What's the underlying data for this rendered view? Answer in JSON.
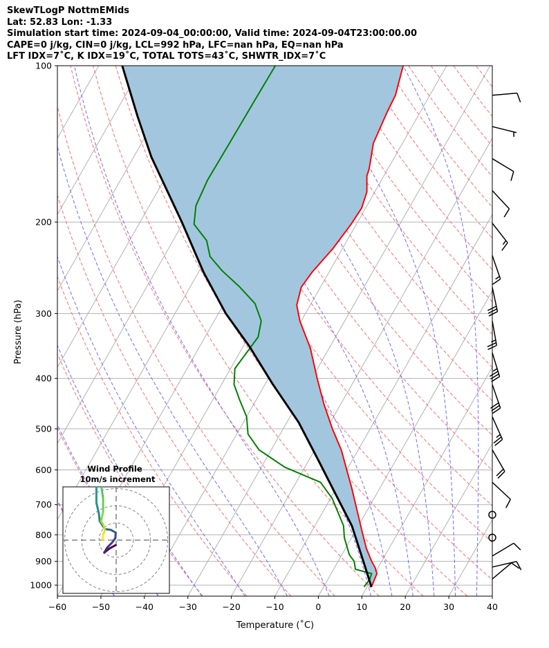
{
  "title_lines": [
    "SkewTLogP NottmEMids",
    "Lat: 52.83   Lon: -1.33",
    "Simulation start time: 2024-09-04_00:00:00, Valid time: 2024-09-04T23:00:00.00",
    "CAPE=0 j/kg, CIN=0 j/kg, LCL=992 hPa, LFC=nan hPa, EQ=nan hPa",
    "LFT IDX=7˚C, K IDX=19˚C, TOTAL TOTS=43˚C, SHWTR_IDX=7˚C"
  ],
  "chart_data": {
    "type": "line",
    "subtype": "skewT-logP",
    "xlabel": "Temperature (˚C)",
    "ylabel": "Pressure (hPa)",
    "xlim": [
      -60,
      40
    ],
    "ylim": [
      1050,
      100
    ],
    "x_ticks": [
      -60,
      -50,
      -40,
      -30,
      -20,
      -10,
      0,
      10,
      20,
      30,
      40
    ],
    "y_ticks": [
      100,
      200,
      300,
      400,
      500,
      600,
      700,
      800,
      900,
      1000
    ],
    "grid": true,
    "colors": {
      "temperature": "#ff0000",
      "dewpoint": "#008000",
      "parcel": "#000000",
      "cin_shading": "#a3c6df",
      "dry_adiabat": "#ff6b6b",
      "moist_adiabat": "#6b6bff",
      "isotherm": "#b0b0b0"
    },
    "series": [
      {
        "name": "temperature",
        "points": [
          [
            1008,
            11.0
          ],
          [
            950,
            10.5
          ],
          [
            925,
            9.3
          ],
          [
            900,
            7.7
          ],
          [
            850,
            4.8
          ],
          [
            800,
            2.2
          ],
          [
            750,
            -0.5
          ],
          [
            700,
            -3.4
          ],
          [
            650,
            -6.5
          ],
          [
            600,
            -10.0
          ],
          [
            550,
            -13.8
          ],
          [
            500,
            -18.7
          ],
          [
            450,
            -23.7
          ],
          [
            400,
            -28.8
          ],
          [
            350,
            -34.3
          ],
          [
            310,
            -40.3
          ],
          [
            289,
            -43.1
          ],
          [
            267,
            -44.4
          ],
          [
            250,
            -43.9
          ],
          [
            225,
            -42.2
          ],
          [
            202,
            -41.2
          ],
          [
            188,
            -40.9
          ],
          [
            175,
            -41.8
          ],
          [
            163,
            -43.9
          ],
          [
            158,
            -44.3
          ],
          [
            141,
            -46.7
          ],
          [
            123,
            -47.6
          ],
          [
            114,
            -47.9
          ],
          [
            100,
            -50.0
          ]
        ]
      },
      {
        "name": "dewpoint",
        "points": [
          [
            1008,
            9.3
          ],
          [
            973,
            9.6
          ],
          [
            950,
            9.3
          ],
          [
            932,
            5.0
          ],
          [
            900,
            3.7
          ],
          [
            874,
            1.7
          ],
          [
            810,
            -1.7
          ],
          [
            769,
            -3.4
          ],
          [
            681,
            -9.6
          ],
          [
            634,
            -14.4
          ],
          [
            593,
            -24.6
          ],
          [
            549,
            -32.8
          ],
          [
            512,
            -37.4
          ],
          [
            474,
            -40.0
          ],
          [
            440,
            -43.8
          ],
          [
            411,
            -47.1
          ],
          [
            383,
            -49.0
          ],
          [
            333,
            -47.8
          ],
          [
            310,
            -49.2
          ],
          [
            287,
            -52.9
          ],
          [
            266,
            -58.8
          ],
          [
            248,
            -64.8
          ],
          [
            233,
            -69.4
          ],
          [
            217,
            -72.3
          ],
          [
            202,
            -77.3
          ],
          [
            186,
            -79.3
          ],
          [
            166,
            -80.0
          ],
          [
            142,
            -79.8
          ],
          [
            118,
            -79.6
          ],
          [
            100,
            -79.4
          ]
        ]
      },
      {
        "name": "parcel",
        "points": [
          [
            1008,
            11.0
          ],
          [
            900,
            5.8
          ],
          [
            769,
            -1.5
          ],
          [
            654,
            -10.6
          ],
          [
            579,
            -17.4
          ],
          [
            486,
            -27.3
          ],
          [
            410,
            -38.3
          ],
          [
            348,
            -48.4
          ],
          [
            300,
            -58.3
          ],
          [
            250,
            -68.8
          ],
          [
            200,
            -80.4
          ],
          [
            150,
            -95.9
          ],
          [
            125,
            -104.5
          ],
          [
            100,
            -114.6
          ]
        ]
      }
    ],
    "wind_barbs": [
      {
        "p": 114,
        "speed_kt": 10,
        "direction_deg": 85
      },
      {
        "p": 131,
        "speed_kt": 5,
        "direction_deg": 104
      },
      {
        "p": 151,
        "speed_kt": 10,
        "direction_deg": 121
      },
      {
        "p": 174,
        "speed_kt": 10,
        "direction_deg": 137
      },
      {
        "p": 201,
        "speed_kt": 15,
        "direction_deg": 142
      },
      {
        "p": 232,
        "speed_kt": 15,
        "direction_deg": 161
      },
      {
        "p": 267,
        "speed_kt": 30,
        "direction_deg": 168
      },
      {
        "p": 310,
        "speed_kt": 25,
        "direction_deg": 170
      },
      {
        "p": 357,
        "speed_kt": 35,
        "direction_deg": 163
      },
      {
        "p": 411,
        "speed_kt": 30,
        "direction_deg": 161
      },
      {
        "p": 474,
        "speed_kt": 25,
        "direction_deg": 156
      },
      {
        "p": 549,
        "speed_kt": 20,
        "direction_deg": 150
      },
      {
        "p": 634,
        "speed_kt": 10,
        "direction_deg": 133
      },
      {
        "p": 732,
        "speed_kt": 2,
        "direction_deg": 178
      },
      {
        "p": 810,
        "speed_kt": 0,
        "direction_deg": 0
      },
      {
        "p": 879,
        "speed_kt": 10,
        "direction_deg": 59
      },
      {
        "p": 923,
        "speed_kt": 10,
        "direction_deg": 77
      },
      {
        "p": 973,
        "speed_kt": 10,
        "direction_deg": 50
      }
    ],
    "hodograph": {
      "title": "Wind Profile",
      "subtitle": "10m/s increment",
      "rings_ms": [
        10,
        20,
        30
      ],
      "range_ms": 31,
      "colormap": "viridis",
      "uv_ms": [
        [
          -0.3,
          -2.9
        ],
        [
          -3.9,
          -4.9
        ],
        [
          -6.9,
          -7.3
        ],
        [
          -5.2,
          -4.3
        ],
        [
          -2.5,
          -1.6
        ],
        [
          -0.5,
          1.1
        ],
        [
          -0.3,
          4.4
        ],
        [
          -3.2,
          6.0
        ],
        [
          -6.5,
          6.4
        ],
        [
          -7.9,
          8.4
        ],
        [
          -9.6,
          11.1
        ],
        [
          -10.1,
          15.7
        ],
        [
          -11.5,
          21.7
        ],
        [
          -11.5,
          30.4
        ],
        [
          -10.8,
          35.1
        ],
        [
          -8.5,
          35.1
        ],
        [
          -8.5,
          30.4
        ],
        [
          -7.6,
          24.4
        ],
        [
          -7.6,
          16.4
        ],
        [
          -8.8,
          11.1
        ],
        [
          -7.2,
          8.4
        ],
        [
          -6.5,
          5.7
        ],
        [
          -7.6,
          3.1
        ],
        [
          -7.9,
          0.1
        ]
      ]
    }
  }
}
